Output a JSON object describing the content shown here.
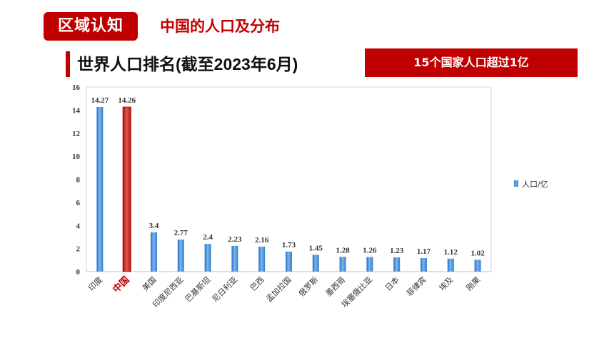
{
  "header": {
    "badge": "区域认知",
    "subtitle": "中国的人口及分布",
    "title": "世界人口排名(截至2023年6月)",
    "callout": "15个国家人口超过1亿"
  },
  "colors": {
    "accent": "#c00000",
    "bar": "#4a90d9",
    "highlight_bar": "#c0392b"
  },
  "chart_data": {
    "type": "bar",
    "categories": [
      "印度",
      "中国",
      "美国",
      "印度尼西亚",
      "巴基斯坦",
      "尼日利亚",
      "巴西",
      "孟加拉国",
      "俄罗斯",
      "墨西哥",
      "埃塞俄比亚",
      "日本",
      "菲律宾",
      "埃及",
      "刚果"
    ],
    "series": [
      {
        "name": "人口/亿",
        "values": [
          14.27,
          14.26,
          3.4,
          2.77,
          2.4,
          2.23,
          2.16,
          1.73,
          1.45,
          1.28,
          1.26,
          1.23,
          1.17,
          1.12,
          1.02
        ]
      }
    ],
    "data_labels": [
      "14.27",
      "14.26",
      "3.4",
      "2.77",
      "2.4",
      "2.23",
      "2.16",
      "1.73",
      "1.45",
      "1.28",
      "1.26",
      "1.23",
      "1.17",
      "1.12",
      "1.02"
    ],
    "highlight_category": "中国",
    "ylim": [
      0,
      16
    ],
    "yticks": [
      "0",
      "2",
      "4",
      "6",
      "8",
      "10",
      "12",
      "14",
      "16"
    ],
    "grid": false,
    "legend_position": "right"
  }
}
